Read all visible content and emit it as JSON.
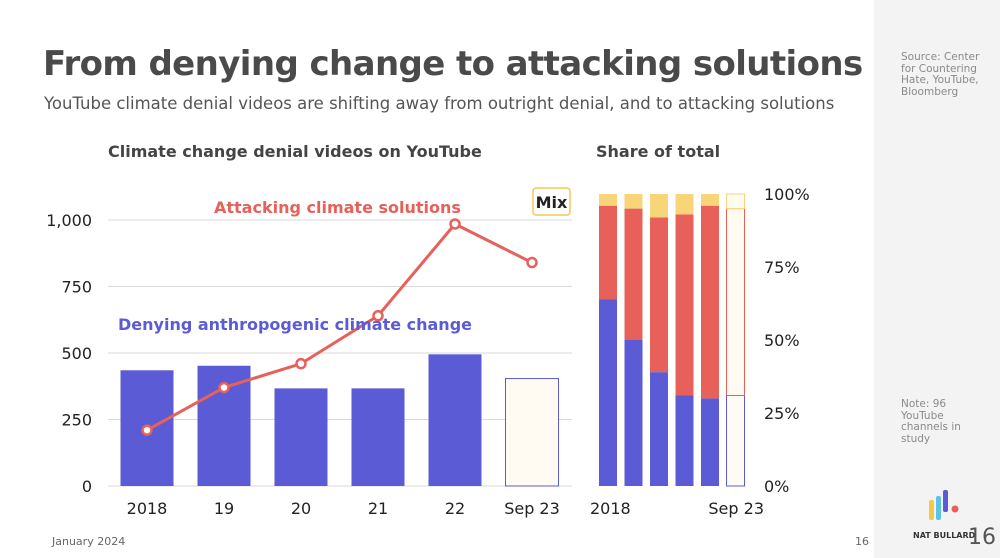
{
  "title": "From denying change to attacking solutions",
  "subtitle": "YouTube climate denial videos are shifting away from outright denial, and to attacking solutions",
  "sidebar": {
    "source": "Source: Center for Countering Hate, YouTube, Bloomberg",
    "note": "Note: 96 YouTube channels in study"
  },
  "footer": {
    "date": "January 2024",
    "page": "16",
    "logo_text": "NAT BULLARD",
    "page_large": "16"
  },
  "colors": {
    "denying": "#5b5bd6",
    "attacking": "#e8605a",
    "mix": "#f9d57a",
    "mix_bg": "#fffaf2",
    "grid": "#d9d9d9"
  },
  "chart_data": [
    {
      "type": "bar",
      "title": "Climate change denial videos on YouTube",
      "categories": [
        "2018",
        "19",
        "20",
        "21",
        "22",
        "Sep 23"
      ],
      "ylim": [
        0,
        1100
      ],
      "yticks": [
        0,
        250,
        500,
        750,
        1000
      ],
      "ytick_labels": [
        "0",
        "250",
        "500",
        "750",
        "1,000"
      ],
      "series": [
        {
          "name": "Denying anthropogenic climate change",
          "type": "bar",
          "values": [
            435,
            452,
            367,
            367,
            495,
            404
          ],
          "partial_last": true
        },
        {
          "name": "Attacking climate solutions",
          "type": "line",
          "values": [
            210,
            370,
            460,
            640,
            985,
            840
          ]
        }
      ],
      "annotations": {
        "denying_label": "Denying anthropogenic climate change",
        "attacking_label": "Attacking climate solutions",
        "mix_label": "Mix"
      }
    },
    {
      "type": "bar",
      "stacked": true,
      "title": "Share of total",
      "categories": [
        "2018",
        "19",
        "20",
        "21",
        "22",
        "Sep 23"
      ],
      "visible_category_labels": [
        "2018",
        "Sep 23"
      ],
      "yticks": [
        0,
        25,
        50,
        75,
        100
      ],
      "ytick_labels": [
        "0%",
        "25%",
        "50%",
        "75%",
        "100%"
      ],
      "series": [
        {
          "name": "Denying anthropogenic climate change",
          "values": [
            64,
            50,
            39,
            31,
            30,
            31
          ]
        },
        {
          "name": "Attacking climate solutions",
          "values": [
            32,
            45,
            53,
            62,
            66,
            64
          ]
        },
        {
          "name": "Mix",
          "values": [
            4,
            5,
            8,
            7,
            4,
            5
          ]
        }
      ]
    }
  ]
}
